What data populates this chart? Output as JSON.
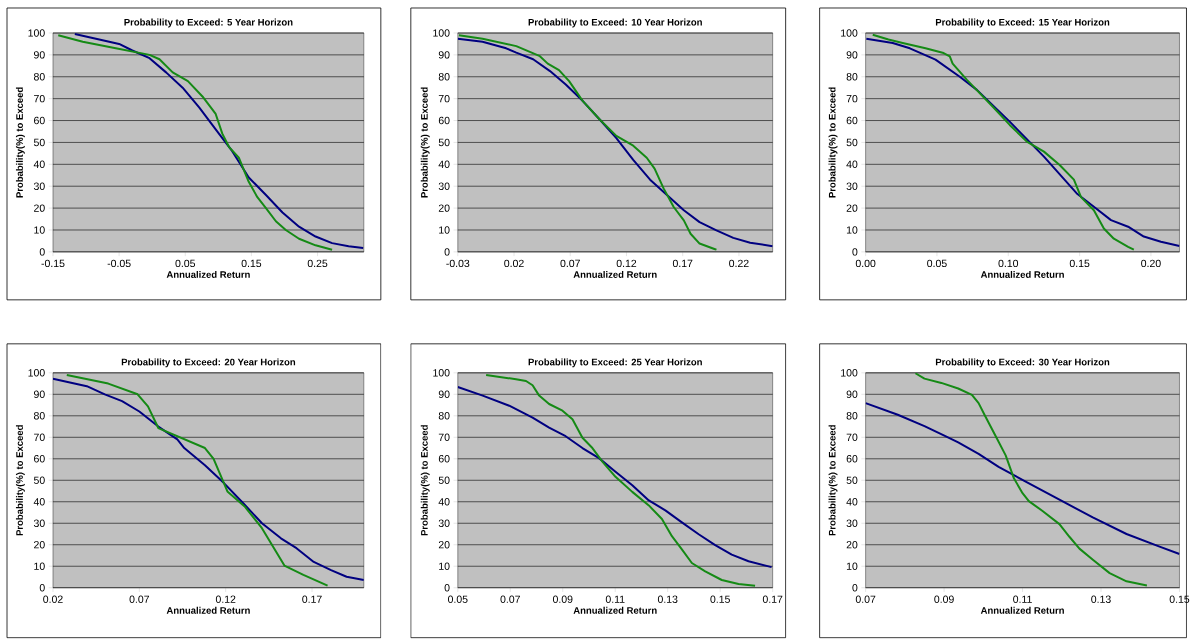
{
  "chart_data": [
    {
      "type": "line",
      "title": "Probability to Exceed: 5 Year Horizon",
      "xlabel": "Annualized Return",
      "ylabel": "Probability(%) to Exceed",
      "xlim": [
        -0.15,
        0.32
      ],
      "xticks": [
        -0.15,
        -0.05,
        0.05,
        0.15,
        0.25
      ],
      "ylim": [
        0,
        100
      ],
      "yticks": [
        0,
        10,
        20,
        30,
        40,
        50,
        60,
        70,
        80,
        90,
        100
      ],
      "grid": "y",
      "series": [
        {
          "color": "#000080",
          "x": [
            -0.117,
            -0.08,
            -0.05,
            -0.03,
            -0.004,
            0.021,
            0.046,
            0.071,
            0.096,
            0.121,
            0.146,
            0.172,
            0.197,
            0.222,
            0.247,
            0.272,
            0.297,
            0.319
          ],
          "values": [
            99.5,
            97,
            95,
            92,
            88.5,
            82,
            75,
            66,
            56,
            46,
            34,
            26,
            18,
            11.5,
            7,
            4,
            2.6,
            1.8
          ]
        },
        {
          "color": "#158a15",
          "x": [
            -0.142,
            -0.105,
            -0.055,
            -0.004,
            0.011,
            0.031,
            0.054,
            0.076,
            0.096,
            0.106,
            0.116,
            0.131,
            0.146,
            0.159,
            0.172,
            0.187,
            0.202,
            0.222,
            0.247,
            0.272
          ],
          "values": [
            99,
            96,
            93,
            90,
            88,
            82,
            78,
            71,
            63,
            54,
            48,
            43,
            32,
            25,
            20,
            14,
            10,
            6,
            3,
            1
          ]
        }
      ]
    },
    {
      "type": "line",
      "title": "Probability to Exceed: 10 Year Horizon",
      "xlabel": "Annualized Return",
      "ylabel": "Probability(%) to Exceed",
      "xlim": [
        -0.03,
        0.25
      ],
      "xticks": [
        -0.03,
        0.02,
        0.07,
        0.12,
        0.17,
        0.22
      ],
      "ylim": [
        0,
        100
      ],
      "yticks": [
        0,
        10,
        20,
        30,
        40,
        50,
        60,
        70,
        80,
        90,
        100
      ],
      "grid": "y",
      "series": [
        {
          "color": "#000080",
          "x": [
            -0.03,
            -0.008,
            0.013,
            0.022,
            0.037,
            0.052,
            0.066,
            0.081,
            0.096,
            0.111,
            0.126,
            0.141,
            0.156,
            0.171,
            0.185,
            0.2,
            0.215,
            0.23,
            0.25
          ],
          "values": [
            97.4,
            96,
            93,
            91,
            88,
            82.6,
            76.5,
            69,
            60.6,
            52,
            42,
            33,
            26,
            19,
            13.6,
            9.8,
            6.4,
            4.2,
            2.6
          ]
        },
        {
          "color": "#158a15",
          "x": [
            -0.029,
            -0.008,
            0.022,
            0.043,
            0.05,
            0.06,
            0.069,
            0.081,
            0.096,
            0.111,
            0.126,
            0.138,
            0.145,
            0.153,
            0.162,
            0.171,
            0.177,
            0.185,
            0.2
          ],
          "values": [
            99,
            97.4,
            94,
            89.4,
            86,
            83,
            78,
            69,
            60.6,
            53,
            48.5,
            43,
            38,
            29,
            20.5,
            14.4,
            8.3,
            3.8,
            1
          ]
        }
      ]
    },
    {
      "type": "line",
      "title": "Probability to Exceed: 15 Year Horizon",
      "xlabel": "Annualized Return",
      "ylabel": "Probability(%) to Exceed",
      "xlim": [
        0,
        0.22
      ],
      "xticks": [
        {
          "value": 0,
          "label": "0.00"
        },
        0.05,
        {
          "value": 0.1,
          "label": "0.10"
        },
        0.15,
        {
          "value": 0.2,
          "label": "0.20"
        }
      ],
      "ylim": [
        0,
        100
      ],
      "yticks": [
        0,
        10,
        20,
        30,
        40,
        50,
        60,
        70,
        80,
        90,
        100
      ],
      "grid": "y",
      "series": [
        {
          "color": "#000080",
          "x": [
            0.0005,
            0.019,
            0.031,
            0.049,
            0.066,
            0.078,
            0.101,
            0.125,
            0.148,
            0.16,
            0.172,
            0.184,
            0.195,
            0.207,
            0.22
          ],
          "values": [
            97.4,
            95.4,
            93,
            87.8,
            80,
            74,
            59.5,
            43.5,
            26.7,
            20.6,
            14.5,
            11.5,
            7,
            4.6,
            2.7
          ]
        },
        {
          "color": "#158a15",
          "x": [
            0.005,
            0.016,
            0.026,
            0.042,
            0.054,
            0.059,
            0.061,
            0.071,
            0.089,
            0.101,
            0.113,
            0.125,
            0.136,
            0.146,
            0.151,
            0.16,
            0.167,
            0.174,
            0.184,
            0.188
          ],
          "values": [
            99.2,
            97,
            95.4,
            93,
            91,
            89.3,
            86,
            78.6,
            66.4,
            58,
            50.4,
            45.8,
            39.7,
            33,
            25,
            19,
            10.7,
            6,
            2.3,
            1
          ]
        }
      ]
    },
    {
      "type": "line",
      "title": "Probability to Exceed: 20 Year Horizon",
      "xlabel": "Annualized Return",
      "ylabel": "Probability(%) to Exceed",
      "xlim": [
        0.02,
        0.2
      ],
      "xticks": [
        0.02,
        0.07,
        0.12,
        0.17
      ],
      "ylim": [
        0,
        100
      ],
      "yticks": [
        0,
        10,
        20,
        30,
        40,
        50,
        60,
        70,
        80,
        90,
        100
      ],
      "grid": "y",
      "series": [
        {
          "color": "#000080",
          "x": [
            0.02,
            0.0396,
            0.05,
            0.06,
            0.07,
            0.081,
            0.092,
            0.096,
            0.108,
            0.119,
            0.131,
            0.141,
            0.152,
            0.161,
            0.171,
            0.181,
            0.19,
            0.2
          ],
          "values": [
            97.2,
            93.8,
            90,
            86.8,
            82,
            75,
            69,
            65,
            57,
            48.7,
            38.6,
            30,
            23,
            18.4,
            12,
            8.2,
            5.1,
            3.6
          ]
        },
        {
          "color": "#158a15",
          "x": [
            0.028,
            0.052,
            0.069,
            0.075,
            0.081,
            0.108,
            0.113,
            0.121,
            0.131,
            0.141,
            0.154,
            0.165,
            0.179
          ],
          "values": [
            99,
            95,
            90,
            84.4,
            74.3,
            65,
            60,
            44.8,
            37.8,
            27.7,
            10.3,
            6,
            1
          ]
        }
      ]
    },
    {
      "type": "line",
      "title": "Probability to Exceed: 25 Year Horizon",
      "xlabel": "Annualized Return",
      "ylabel": "Probability(%) to Exceed",
      "xlim": [
        0.05,
        0.17
      ],
      "xticks": [
        0.05,
        0.07,
        0.09,
        0.11,
        0.13,
        0.15,
        0.17
      ],
      "ylim": [
        0,
        100
      ],
      "yticks": [
        0,
        10,
        20,
        30,
        40,
        50,
        60,
        70,
        80,
        90,
        100
      ],
      "grid": "y",
      "series": [
        {
          "color": "#000080",
          "x": [
            0.05,
            0.0595,
            0.0696,
            0.0785,
            0.0848,
            0.0911,
            0.0975,
            0.1038,
            0.1101,
            0.1165,
            0.1228,
            0.1291,
            0.1354,
            0.1418,
            0.1481,
            0.1544,
            0.1608,
            0.1696
          ],
          "values": [
            93.4,
            89.4,
            84.7,
            79.2,
            74.5,
            70.5,
            65,
            60.3,
            54,
            47.7,
            40.6,
            36,
            30.4,
            24.9,
            19.8,
            15.4,
            12.3,
            9.6
          ]
        },
        {
          "color": "#158a15",
          "x": [
            0.0608,
            0.0722,
            0.076,
            0.0785,
            0.081,
            0.0848,
            0.0899,
            0.0937,
            0.0975,
            0.1013,
            0.1051,
            0.1101,
            0.1165,
            0.1228,
            0.1278,
            0.1316,
            0.1354,
            0.1392,
            0.1443,
            0.1506,
            0.157,
            0.1633
          ],
          "values": [
            99,
            97,
            96.2,
            94.2,
            89.4,
            85.5,
            82.4,
            78.4,
            69.8,
            65,
            58.7,
            51.6,
            44.6,
            38.3,
            32,
            24,
            17.8,
            11.5,
            7.6,
            3.6,
            1.7,
            0.9
          ]
        }
      ]
    },
    {
      "type": "line",
      "title": "Probability to Exceed: 30 Year Horizon",
      "xlabel": "Annualized Return",
      "ylabel": "Probability(%) to Exceed",
      "xlim": [
        0.07,
        0.15
      ],
      "xticks": [
        0.07,
        0.09,
        0.11,
        0.13,
        0.15
      ],
      "ylim": [
        0,
        100
      ],
      "yticks": [
        0,
        10,
        20,
        30,
        40,
        50,
        60,
        70,
        80,
        90,
        100
      ],
      "grid": "y",
      "series": [
        {
          "color": "#000080",
          "x": [
            0.07,
            0.0782,
            0.085,
            0.0902,
            0.0936,
            0.0988,
            0.1039,
            0.1108,
            0.1194,
            0.1279,
            0.1365,
            0.1451,
            0.15
          ],
          "values": [
            85.9,
            80.5,
            75.2,
            70.7,
            67.6,
            62.3,
            56.2,
            49.4,
            41,
            32.7,
            25,
            19,
            15.7
          ]
        },
        {
          "color": "#158a15",
          "x": [
            0.0827,
            0.085,
            0.0893,
            0.0936,
            0.0971,
            0.0988,
            0.1005,
            0.1031,
            0.1057,
            0.1078,
            0.11,
            0.1116,
            0.1151,
            0.1194,
            0.122,
            0.1245,
            0.128,
            0.1322,
            0.1365,
            0.1417
          ],
          "values": [
            99.8,
            97.3,
            95.3,
            92.7,
            89.7,
            85.9,
            79.8,
            70.7,
            61.6,
            50.9,
            44,
            40.3,
            35.7,
            29.6,
            23.6,
            18.2,
            12.9,
            6.8,
            3,
            1
          ]
        }
      ]
    }
  ]
}
